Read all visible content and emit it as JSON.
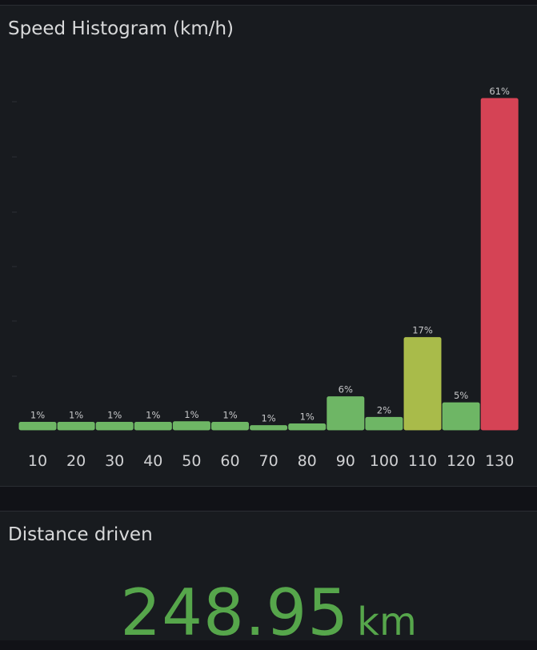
{
  "histogram_panel": {
    "title": "Speed Histogram (km/h)"
  },
  "distance_panel": {
    "title": "Distance driven",
    "value": "248.95",
    "unit": "km",
    "value_color": "#56a64b"
  },
  "colors": {
    "background": "#111217",
    "panel": "#181b1f",
    "green": "#73bf69",
    "yellow": "#b1c44d",
    "red": "#df4658"
  },
  "chart_data": {
    "type": "bar",
    "title": "Speed Histogram (km/h)",
    "xlabel": "",
    "ylabel": "",
    "categories": [
      "10",
      "20",
      "30",
      "40",
      "50",
      "60",
      "70",
      "80",
      "90",
      "100",
      "110",
      "120",
      "130"
    ],
    "values": [
      1.4,
      1.4,
      1.4,
      1.4,
      1.5,
      1.4,
      0.8,
      1.1,
      6.1,
      2.3,
      17.0,
      5.0,
      61.0
    ],
    "data_labels": [
      "1%",
      "1%",
      "1%",
      "1%",
      "1%",
      "1%",
      "1%",
      "1%",
      "6%",
      "2%",
      "17%",
      "5%",
      "61%"
    ],
    "bar_colors": [
      "#73bf69",
      "#73bf69",
      "#73bf69",
      "#73bf69",
      "#73bf69",
      "#73bf69",
      "#73bf69",
      "#73bf69",
      "#73bf69",
      "#73bf69",
      "#b1c44d",
      "#73bf69",
      "#df4658"
    ],
    "ylim": [
      0,
      61
    ],
    "grid": false,
    "legend": "none"
  }
}
